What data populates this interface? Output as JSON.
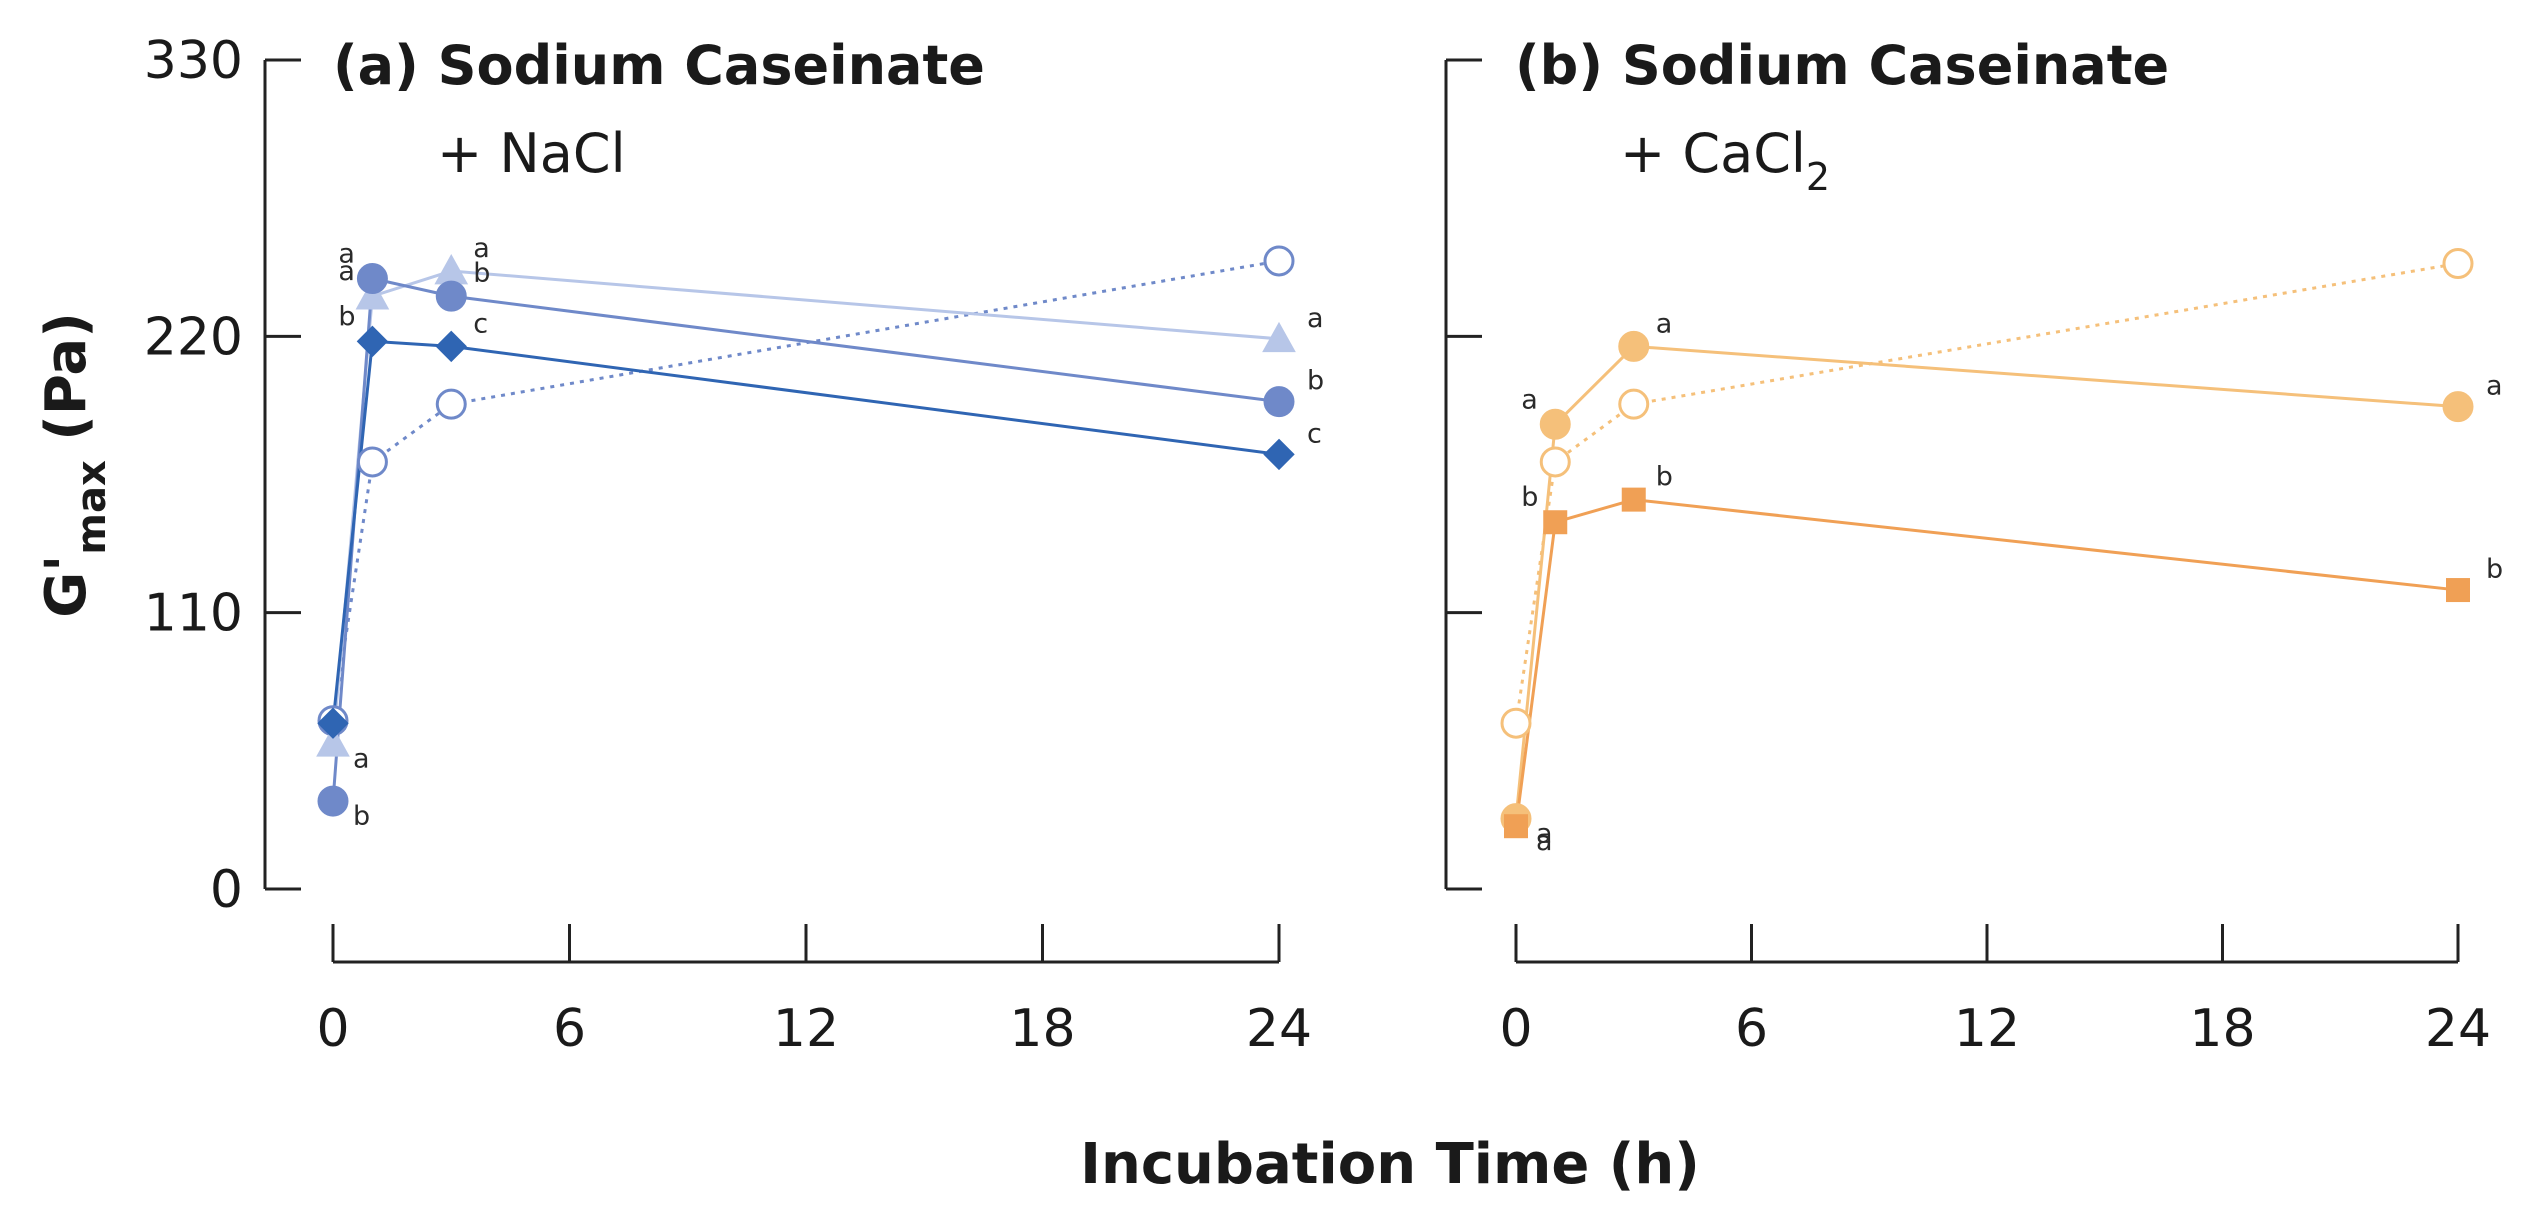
{
  "chart_data": [
    {
      "type": "line",
      "title": "(a) Sodium Caseinate",
      "subtitle": "+ NaCl",
      "xlabel": "Incubation Time (h)",
      "ylabel": "G'max (Pa)",
      "ylabel_main": "G'",
      "ylabel_sub": "max",
      "ylabel_unit": " (Pa)",
      "xlim": [
        0,
        24
      ],
      "ylim": [
        0,
        330
      ],
      "xticks": [
        "0",
        "6",
        "12",
        "18",
        "24"
      ],
      "yticks": [
        "0",
        "110",
        "220",
        "330"
      ],
      "series": [
        {
          "x": [
            0,
            1,
            3,
            24
          ],
          "y": [
            67,
            170,
            193,
            250
          ],
          "marker": "circle-open",
          "line": "dotted",
          "color": "#6f89c9",
          "labels": [
            "",
            "",
            "",
            ""
          ]
        },
        {
          "x": [
            0,
            1,
            3,
            24
          ],
          "y": [
            58,
            236,
            246,
            219
          ],
          "marker": "triangle",
          "line": "solid",
          "color": "#b7c6e8",
          "labels": [
            "a",
            "a",
            "a",
            "a"
          ]
        },
        {
          "x": [
            0,
            1,
            3,
            24
          ],
          "y": [
            35,
            243,
            236,
            194
          ],
          "marker": "circle",
          "line": "solid",
          "color": "#6f89c9",
          "labels": [
            "b",
            "a",
            "b",
            "b"
          ]
        },
        {
          "x": [
            0,
            1,
            3,
            24
          ],
          "y": [
            66,
            218,
            216,
            173
          ],
          "marker": "diamond",
          "line": "solid",
          "color": "#2f65b3",
          "labels": [
            "",
            "b",
            "c",
            "c"
          ]
        }
      ]
    },
    {
      "type": "line",
      "title": "(b) Sodium Caseinate",
      "subtitle_main": "+ CaCl",
      "subtitle_sub": "2",
      "xlim": [
        0,
        24
      ],
      "ylim": [
        0,
        330
      ],
      "xticks": [
        "0",
        "6",
        "12",
        "18",
        "24"
      ],
      "series": [
        {
          "x": [
            0,
            1,
            3,
            24
          ],
          "y": [
            66,
            170,
            193,
            249
          ],
          "marker": "circle-open",
          "line": "dotted",
          "color": "#f5c07a",
          "labels": [
            "",
            "",
            "",
            ""
          ]
        },
        {
          "x": [
            0,
            1,
            3,
            24
          ],
          "y": [
            28,
            185,
            216,
            192
          ],
          "marker": "circle",
          "line": "solid",
          "color": "#f5c07a",
          "labels": [
            "a",
            "a",
            "a",
            "a"
          ]
        },
        {
          "x": [
            0,
            1,
            3,
            24
          ],
          "y": [
            25,
            146,
            155,
            119
          ],
          "marker": "square",
          "line": "solid",
          "color": "#f0a055",
          "labels": [
            "a",
            "b",
            "b",
            "b"
          ]
        }
      ]
    }
  ]
}
